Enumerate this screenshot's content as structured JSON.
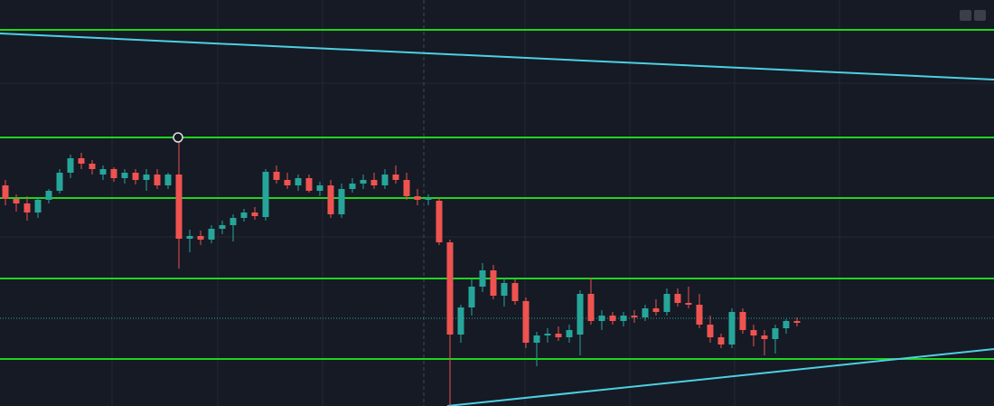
{
  "chart_data": {
    "type": "candlestick",
    "up_color": "#26a69a",
    "down_color": "#ef5350",
    "background": "#161a25",
    "grid": true,
    "xlim": [
      -0.5,
      91.17
    ],
    "ylim": [
      0,
      449
    ],
    "level_color": "#1fd51f",
    "levels": [
      416,
      297,
      230,
      141,
      52
    ],
    "price_line": 97,
    "trend_color": "#4dd0e1",
    "trendlines": [
      [
        [
          -0.5,
          412
        ],
        [
          91.17,
          361
        ]
      ],
      [
        [
          40.75,
          0
        ],
        [
          91.17,
          63
        ]
      ]
    ],
    "candles": [
      [
        244,
        250,
        222,
        229
      ],
      [
        229,
        234,
        215,
        224
      ],
      [
        224,
        232,
        205,
        214
      ],
      [
        214,
        230,
        208,
        228
      ],
      [
        228,
        240,
        224,
        238
      ],
      [
        238,
        262,
        235,
        258
      ],
      [
        258,
        278,
        252,
        274
      ],
      [
        274,
        280,
        262,
        268
      ],
      [
        268,
        272,
        256,
        262
      ],
      [
        256,
        266,
        250,
        262
      ],
      [
        262,
        264,
        248,
        252
      ],
      [
        252,
        262,
        246,
        258
      ],
      [
        258,
        262,
        245,
        250
      ],
      [
        250,
        262,
        238,
        256
      ],
      [
        256,
        262,
        240,
        244
      ],
      [
        244,
        258,
        240,
        256
      ],
      [
        256,
        297,
        152,
        185
      ],
      [
        185,
        195,
        170,
        188
      ],
      [
        188,
        194,
        178,
        184
      ],
      [
        184,
        200,
        180,
        196
      ],
      [
        196,
        205,
        190,
        200
      ],
      [
        200,
        212,
        182,
        208
      ],
      [
        208,
        218,
        204,
        214
      ],
      [
        214,
        220,
        206,
        210
      ],
      [
        209,
        262,
        205,
        259
      ],
      [
        259,
        266,
        246,
        250
      ],
      [
        250,
        258,
        240,
        244
      ],
      [
        244,
        256,
        238,
        252
      ],
      [
        252,
        256,
        236,
        238
      ],
      [
        238,
        248,
        232,
        244
      ],
      [
        244,
        250,
        208,
        212
      ],
      [
        212,
        246,
        208,
        240
      ],
      [
        240,
        252,
        236,
        246
      ],
      [
        246,
        256,
        240,
        250
      ],
      [
        250,
        258,
        240,
        244
      ],
      [
        244,
        262,
        240,
        256
      ],
      [
        256,
        266,
        246,
        250
      ],
      [
        250,
        258,
        228,
        232
      ],
      [
        232,
        240,
        222,
        228
      ],
      [
        228,
        234,
        222,
        230
      ],
      [
        227,
        230,
        178,
        181
      ],
      [
        181,
        184,
        0,
        79
      ],
      [
        79,
        112,
        70,
        109
      ],
      [
        109,
        140,
        100,
        132
      ],
      [
        132,
        158,
        126,
        150
      ],
      [
        150,
        156,
        118,
        122
      ],
      [
        122,
        142,
        110,
        136
      ],
      [
        136,
        140,
        112,
        116
      ],
      [
        116,
        120,
        64,
        70
      ],
      [
        70,
        82,
        44,
        78
      ],
      [
        78,
        86,
        70,
        80
      ],
      [
        80,
        88,
        72,
        76
      ],
      [
        76,
        90,
        70,
        84
      ],
      [
        79,
        128,
        56,
        124
      ],
      [
        124,
        142,
        90,
        94
      ],
      [
        94,
        106,
        84,
        100
      ],
      [
        100,
        104,
        90,
        94
      ],
      [
        94,
        104,
        88,
        100
      ],
      [
        100,
        106,
        92,
        98
      ],
      [
        98,
        112,
        94,
        108
      ],
      [
        108,
        118,
        100,
        104
      ],
      [
        104,
        130,
        100,
        124
      ],
      [
        124,
        130,
        110,
        114
      ],
      [
        114,
        132,
        108,
        112
      ],
      [
        112,
        124,
        86,
        90
      ],
      [
        90,
        100,
        70,
        76
      ],
      [
        76,
        80,
        64,
        68
      ],
      [
        68,
        108,
        64,
        104
      ],
      [
        104,
        108,
        80,
        84
      ],
      [
        84,
        90,
        66,
        78
      ],
      [
        78,
        84,
        56,
        74
      ],
      [
        74,
        90,
        58,
        86
      ],
      [
        86,
        96,
        80,
        94
      ],
      [
        94,
        98,
        88,
        92
      ]
    ]
  }
}
